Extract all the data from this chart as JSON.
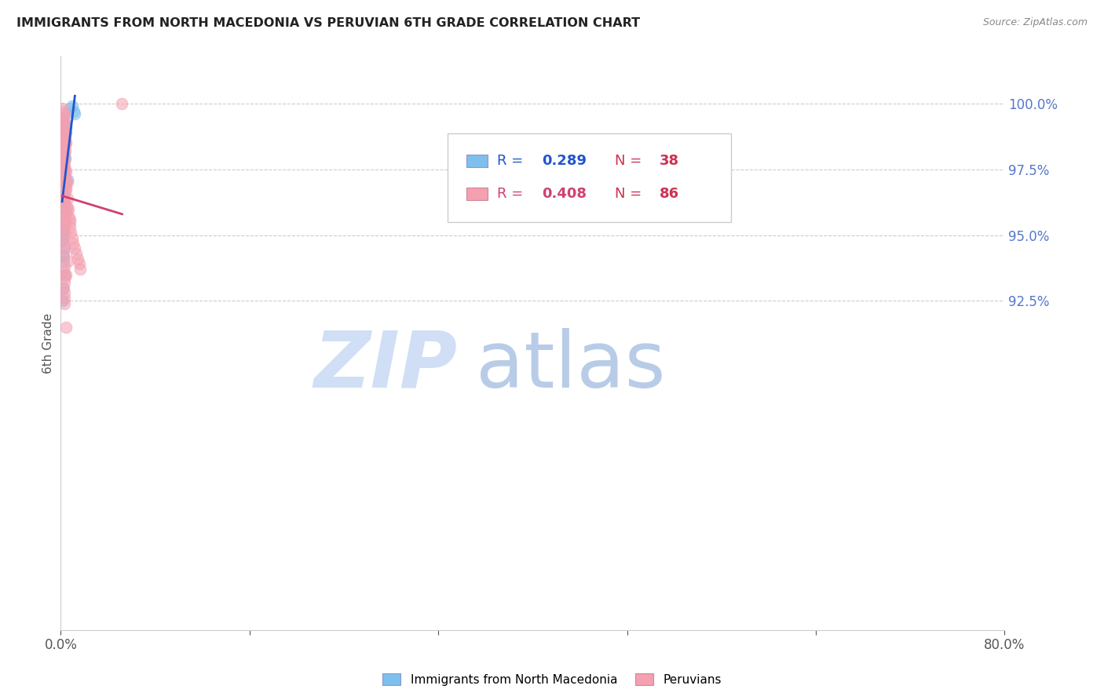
{
  "title": "IMMIGRANTS FROM NORTH MACEDONIA VS PERUVIAN 6TH GRADE CORRELATION CHART",
  "source": "Source: ZipAtlas.com",
  "ylabel": "6th Grade",
  "xmin": 0.0,
  "xmax": 80.0,
  "ymin": 80.0,
  "ymax": 101.8,
  "yticks": [
    92.5,
    95.0,
    97.5,
    100.0
  ],
  "legend_blue_r": "0.289",
  "legend_blue_n": "38",
  "legend_pink_r": "0.408",
  "legend_pink_n": "86",
  "legend_label_blue": "Immigrants from North Macedonia",
  "legend_label_pink": "Peruvians",
  "blue_color": "#7fbfed",
  "pink_color": "#f4a0b0",
  "blue_line_color": "#2255cc",
  "pink_line_color": "#d04070",
  "watermark_zip_color": "#d0dff5",
  "watermark_atlas_color": "#b8cce8",
  "blue_x": [
    0.15,
    0.25,
    0.35,
    0.12,
    0.2,
    0.45,
    0.3,
    0.18,
    0.38,
    0.22,
    0.28,
    0.14,
    0.4,
    0.16,
    0.32,
    0.24,
    0.42,
    0.55,
    0.26,
    0.22,
    0.16,
    0.33,
    0.27,
    0.36,
    0.21,
    0.15,
    0.13,
    0.28,
    0.23,
    0.31,
    0.2,
    0.17,
    0.26,
    0.8,
    1.0,
    1.1,
    1.2,
    0.44
  ],
  "blue_y": [
    99.5,
    99.3,
    99.2,
    99.0,
    98.8,
    99.1,
    98.5,
    98.7,
    98.6,
    98.3,
    98.0,
    97.8,
    97.9,
    97.5,
    97.4,
    97.2,
    97.0,
    97.1,
    96.8,
    96.5,
    96.3,
    96.0,
    95.8,
    95.5,
    95.2,
    95.0,
    94.8,
    94.5,
    94.0,
    93.5,
    93.0,
    92.5,
    94.2,
    99.8,
    99.9,
    99.7,
    99.6,
    98.9
  ],
  "pink_x": [
    0.12,
    0.22,
    0.32,
    0.18,
    0.26,
    0.38,
    0.42,
    0.24,
    0.34,
    0.28,
    0.16,
    0.4,
    0.22,
    0.34,
    0.28,
    0.44,
    0.16,
    0.28,
    0.5,
    0.55,
    0.65,
    0.75,
    0.8,
    0.85,
    0.95,
    1.05,
    1.15,
    1.28,
    1.45,
    1.55,
    1.65,
    0.24,
    0.34,
    0.44,
    0.55,
    0.18,
    0.28,
    0.38,
    0.22,
    0.34,
    0.44,
    0.55,
    0.65,
    0.75,
    0.18,
    0.28,
    0.38,
    0.22,
    0.34,
    0.18,
    0.28,
    0.38,
    0.22,
    0.34,
    0.44,
    0.18,
    0.28,
    0.24,
    0.34,
    0.16,
    0.28,
    0.38,
    0.22,
    0.34,
    0.44,
    0.55,
    0.18,
    0.28,
    0.38,
    0.22,
    0.28,
    0.18,
    0.22,
    0.34,
    0.18,
    0.28,
    0.22,
    0.16,
    0.34,
    0.22,
    0.28,
    0.16,
    5.2,
    0.24,
    0.34,
    0.44
  ],
  "pink_y": [
    99.8,
    99.5,
    99.3,
    99.1,
    98.9,
    98.7,
    98.5,
    98.3,
    98.1,
    97.9,
    97.7,
    97.5,
    97.3,
    97.1,
    96.9,
    96.7,
    96.5,
    96.3,
    96.1,
    95.9,
    95.7,
    95.5,
    95.3,
    95.1,
    94.9,
    94.7,
    94.5,
    94.3,
    94.1,
    93.9,
    93.7,
    98.2,
    97.8,
    97.4,
    97.0,
    99.2,
    98.8,
    98.4,
    97.6,
    97.2,
    96.8,
    96.4,
    96.0,
    95.6,
    99.0,
    98.6,
    98.2,
    97.8,
    97.4,
    98.0,
    97.6,
    97.2,
    96.8,
    96.4,
    96.0,
    95.8,
    95.4,
    95.0,
    94.6,
    94.2,
    93.8,
    93.4,
    93.0,
    92.6,
    93.5,
    94.0,
    99.4,
    99.6,
    98.6,
    97.0,
    95.2,
    96.2,
    94.4,
    92.8,
    98.4,
    97.0,
    95.6,
    94.8,
    96.6,
    95.4,
    93.2,
    99.7,
    100.0,
    93.6,
    92.4,
    91.5
  ]
}
